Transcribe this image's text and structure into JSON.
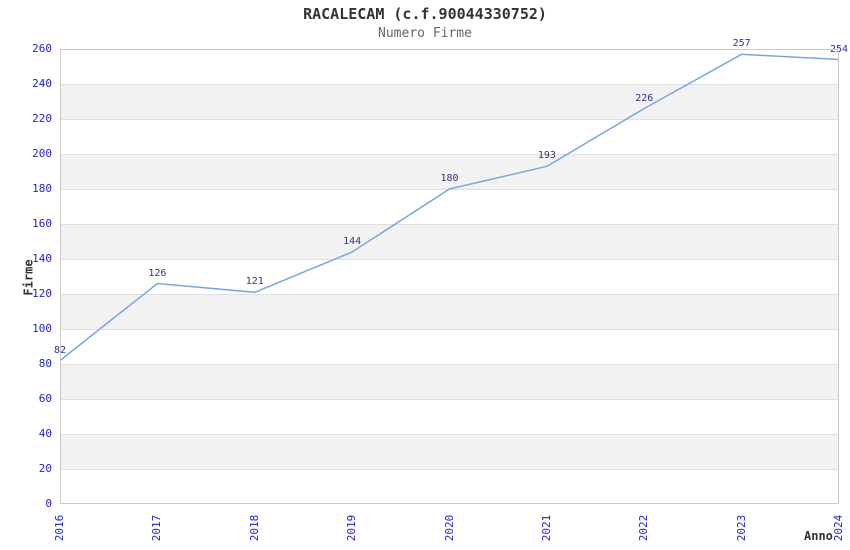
{
  "header": {
    "title": "RACALECAM (c.f.90044330752)",
    "subtitle": "Numero Firme"
  },
  "chart_data": {
    "type": "line",
    "title": "RACALECAM (c.f.90044330752)",
    "subtitle": "Numero Firme",
    "xlabel": "Anno",
    "ylabel": "Firme",
    "categories": [
      "2016",
      "2017",
      "2018",
      "2019",
      "2020",
      "2021",
      "2022",
      "2023",
      "2024"
    ],
    "series": [
      {
        "name": "Numero Firme",
        "values": [
          82,
          126,
          121,
          144,
          180,
          193,
          226,
          257,
          254
        ]
      }
    ],
    "ylim": [
      0,
      260
    ],
    "ytick_step": 20,
    "grid": true,
    "plot_bands": "alternating 20-unit horizontal gray bands",
    "legend_position": "none",
    "style": {
      "line_color": "#7aa7e0",
      "tick_label_color": "#2222cc",
      "data_label_color": "#333388",
      "title_color": "#333333",
      "subtitle_color": "#666666",
      "axis_title_color": "#333333",
      "band_color": "#f2f2f2",
      "grid_color": "#e0e0e0",
      "border_color": "#c9c9c9",
      "background": "#ffffff"
    }
  }
}
